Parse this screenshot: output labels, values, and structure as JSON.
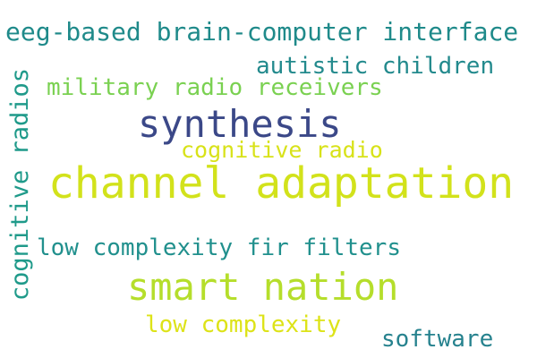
{
  "words": [
    {
      "text": "eeg-based brain-computer interface",
      "color": "#1f8a8a"
    },
    {
      "text": "autistic children",
      "color": "#238a8d"
    },
    {
      "text": "military radio receivers",
      "color": "#7ad151"
    },
    {
      "text": "synthesis",
      "color": "#3b4888"
    },
    {
      "text": "cognitive radio",
      "color": "#d8e219"
    },
    {
      "text": "channel adaptation",
      "color": "#d2e21b"
    },
    {
      "text": "cognitive radios",
      "color": "#1f9a8a"
    },
    {
      "text": "low complexity fir filters",
      "color": "#21908d"
    },
    {
      "text": "smart nation",
      "color": "#b5de2b"
    },
    {
      "text": "low complexity",
      "color": "#dde318"
    },
    {
      "text": "software",
      "color": "#26828e"
    }
  ]
}
